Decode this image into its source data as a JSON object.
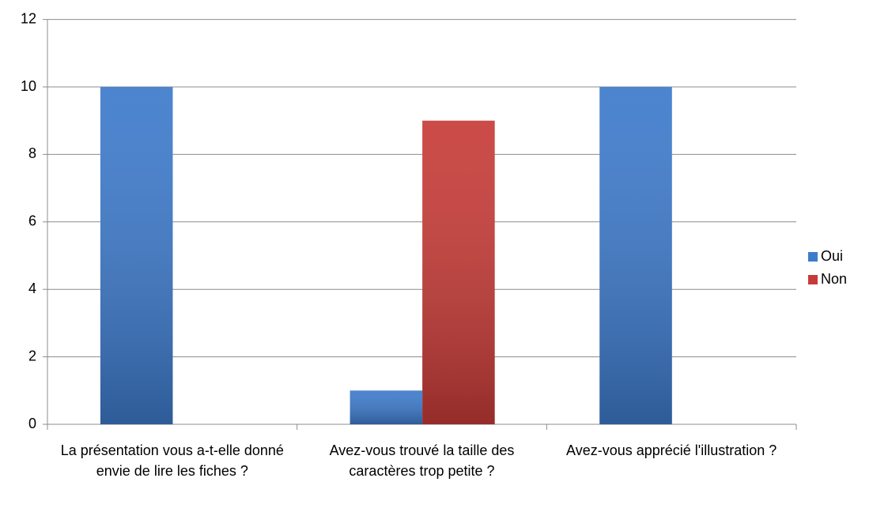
{
  "chart_data": {
    "type": "bar",
    "categories": [
      "La présentation vous a-t-elle donné envie de lire les fiches ?",
      "Avez-vous trouvé la taille des caractères trop petite ?",
      "Avez-vous apprécié l'illustration ?"
    ],
    "series": [
      {
        "name": "Oui",
        "color": "#3d7acb",
        "values": [
          10,
          1,
          10
        ]
      },
      {
        "name": "Non",
        "color": "#c63b37",
        "values": [
          0,
          9,
          0
        ]
      }
    ],
    "ylim": [
      0,
      12
    ],
    "yticks": [
      0,
      2,
      4,
      6,
      8,
      10,
      12
    ],
    "grid": true,
    "legend": "right"
  }
}
